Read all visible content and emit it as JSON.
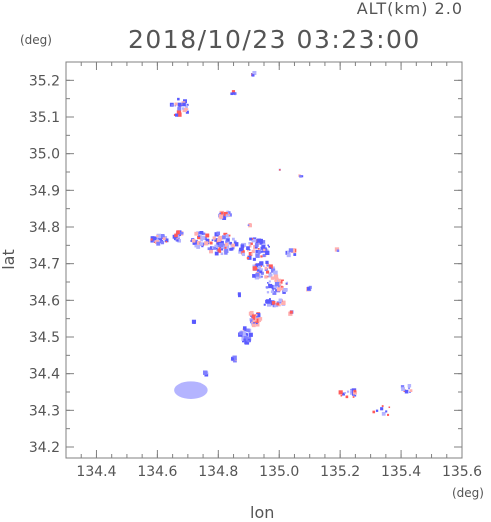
{
  "header": {
    "altitude_label": "ALT(km) 2.0",
    "datetime": "2018/10/23 03:23:00"
  },
  "chart_data": {
    "type": "scatter",
    "title": "2018/10/23 03:23:00",
    "subtitle": "ALT(km) 2.0",
    "xlabel": "lon",
    "ylabel": "lat",
    "xunit": "(deg)",
    "yunit": "(deg)",
    "xlim": [
      134.3,
      135.6
    ],
    "ylim": [
      34.17,
      35.25
    ],
    "xticks": [
      "134.4",
      "134.6",
      "134.8",
      "135.0",
      "135.2",
      "135.4",
      "135.6"
    ],
    "yticks": [
      "34.2",
      "34.3",
      "34.4",
      "34.5",
      "34.6",
      "34.7",
      "34.8",
      "34.9",
      "35.0",
      "35.1",
      "35.2"
    ],
    "grid": false,
    "legend": "none",
    "colors": {
      "positive": "#ff5a5a",
      "negative": "#5a5aff",
      "light": "#b4b4ff",
      "axis": "#808080",
      "text": "#555555"
    },
    "clusters": [
      {
        "lon": 134.61,
        "lat": 34.765,
        "rlon": 0.03,
        "rlat": 0.012,
        "n": 30
      },
      {
        "lon": 134.67,
        "lat": 34.775,
        "rlon": 0.015,
        "rlat": 0.015,
        "n": 20
      },
      {
        "lon": 134.74,
        "lat": 34.765,
        "rlon": 0.03,
        "rlat": 0.02,
        "n": 35
      },
      {
        "lon": 134.81,
        "lat": 34.755,
        "rlon": 0.05,
        "rlat": 0.03,
        "n": 70
      },
      {
        "lon": 134.92,
        "lat": 34.74,
        "rlon": 0.05,
        "rlat": 0.03,
        "n": 60
      },
      {
        "lon": 134.82,
        "lat": 34.835,
        "rlon": 0.02,
        "rlat": 0.012,
        "n": 20
      },
      {
        "lon": 134.95,
        "lat": 34.68,
        "rlon": 0.04,
        "rlat": 0.025,
        "n": 45
      },
      {
        "lon": 134.99,
        "lat": 34.64,
        "rlon": 0.04,
        "rlat": 0.025,
        "n": 40
      },
      {
        "lon": 134.98,
        "lat": 34.595,
        "rlon": 0.04,
        "rlat": 0.01,
        "n": 25
      },
      {
        "lon": 134.92,
        "lat": 34.55,
        "rlon": 0.02,
        "rlat": 0.02,
        "n": 25
      },
      {
        "lon": 134.89,
        "lat": 34.5,
        "rlon": 0.02,
        "rlat": 0.025,
        "n": 30
      },
      {
        "lon": 134.85,
        "lat": 34.44,
        "rlon": 0.01,
        "rlat": 0.005,
        "n": 8
      },
      {
        "lon": 134.675,
        "lat": 35.125,
        "rlon": 0.03,
        "rlat": 0.025,
        "n": 25
      },
      {
        "lon": 134.85,
        "lat": 35.165,
        "rlon": 0.008,
        "rlat": 0.005,
        "n": 5
      },
      {
        "lon": 134.92,
        "lat": 35.215,
        "rlon": 0.008,
        "rlat": 0.006,
        "n": 5
      },
      {
        "lon": 135.0,
        "lat": 34.955,
        "rlon": 0.003,
        "rlat": 0.003,
        "n": 2
      },
      {
        "lon": 135.07,
        "lat": 34.94,
        "rlon": 0.006,
        "rlat": 0.004,
        "n": 4
      },
      {
        "lon": 135.1,
        "lat": 34.635,
        "rlon": 0.006,
        "rlat": 0.01,
        "n": 4
      },
      {
        "lon": 135.04,
        "lat": 34.565,
        "rlon": 0.004,
        "rlat": 0.004,
        "n": 3
      },
      {
        "lon": 135.04,
        "lat": 34.73,
        "rlon": 0.015,
        "rlat": 0.01,
        "n": 8
      },
      {
        "lon": 135.19,
        "lat": 34.735,
        "rlon": 0.004,
        "rlat": 0.004,
        "n": 2
      },
      {
        "lon": 134.9,
        "lat": 34.805,
        "rlon": 0.005,
        "rlat": 0.004,
        "n": 3
      },
      {
        "lon": 134.87,
        "lat": 34.615,
        "rlon": 0.004,
        "rlat": 0.004,
        "n": 2
      },
      {
        "lon": 135.23,
        "lat": 34.345,
        "rlon": 0.03,
        "rlat": 0.012,
        "n": 14
      },
      {
        "lon": 135.42,
        "lat": 34.36,
        "rlon": 0.02,
        "rlat": 0.012,
        "n": 10
      },
      {
        "lon": 135.34,
        "lat": 34.3,
        "rlon": 0.04,
        "rlat": 0.015,
        "n": 8
      },
      {
        "lon": 134.72,
        "lat": 34.54,
        "rlon": 0.003,
        "rlat": 0.003,
        "n": 2
      },
      {
        "lon": 134.76,
        "lat": 34.4,
        "rlon": 0.005,
        "rlat": 0.004,
        "n": 3
      }
    ],
    "patches": [
      {
        "lon": 134.71,
        "lat": 34.355,
        "rlon": 0.055,
        "rlat": 0.024
      }
    ]
  }
}
